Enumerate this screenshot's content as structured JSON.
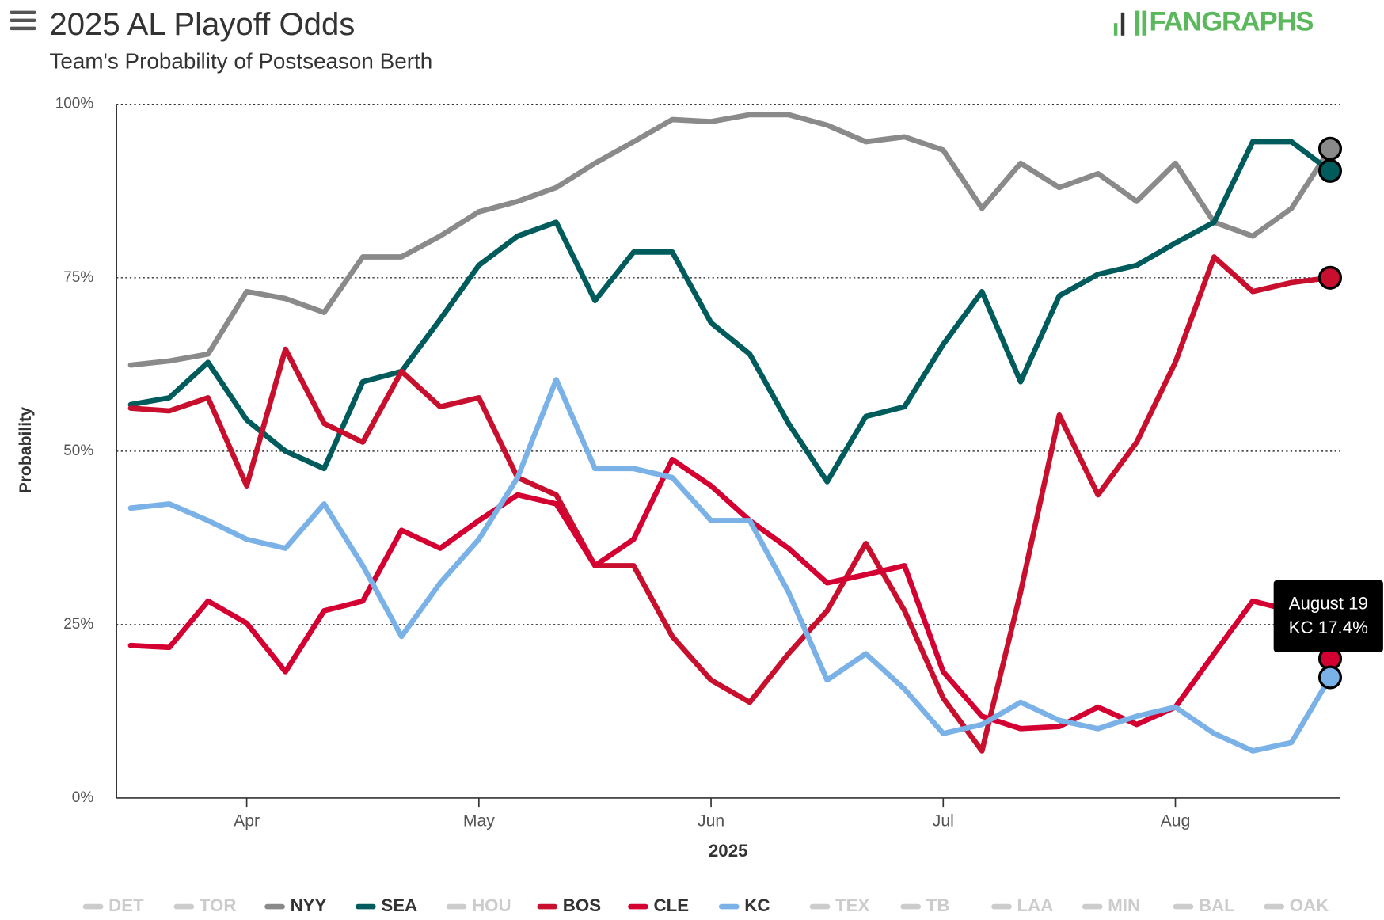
{
  "chart_data": {
    "type": "line",
    "title": "2025 AL Playoff Odds",
    "subtitle": "Team's Probability of Postseason Berth",
    "logo": "FANGRAPHS",
    "x_label": "2025",
    "y_label": "Probability",
    "categories": [
      null,
      null,
      null,
      "Apr",
      null,
      null,
      null,
      null,
      null,
      "May",
      null,
      null,
      null,
      null,
      null,
      "Jun",
      null,
      null,
      null,
      null,
      null,
      "Jul",
      null,
      null,
      null,
      null,
      null,
      "Aug",
      null,
      null,
      null,
      null
    ],
    "ylim": [
      0,
      100
    ],
    "yticks": [
      {
        "value": 0,
        "label": "0%"
      },
      {
        "value": 25,
        "label": "25%"
      },
      {
        "value": 50,
        "label": "50%"
      },
      {
        "value": 75,
        "label": "75%"
      },
      {
        "value": 100,
        "label": "100%"
      }
    ],
    "grid": true,
    "legend": "bottom",
    "tooltip": {
      "date": "August 19",
      "text": "KC 17.4%"
    },
    "series": [
      {
        "name": "DET",
        "color": "#cccccc",
        "visible": false
      },
      {
        "name": "TOR",
        "color": "#cccccc",
        "visible": false
      },
      {
        "name": "NYY",
        "color": "#8a8a8a",
        "visible": true,
        "values": [
          62.4,
          63,
          64,
          73,
          72,
          70,
          78,
          78,
          81,
          84.5,
          86,
          88,
          91.5,
          94.6,
          97.8,
          97.5,
          98.5,
          98.5,
          97,
          94.6,
          95.3,
          93.4,
          85,
          91.5,
          88,
          90,
          86,
          91.5,
          83,
          81,
          85,
          93.6
        ]
      },
      {
        "name": "SEA",
        "color": "#005c5c",
        "visible": true,
        "values": [
          56.7,
          57.7,
          62.8,
          54.5,
          50,
          47.5,
          60,
          61.5,
          69,
          76.8,
          81,
          83,
          71.7,
          78.7,
          78.7,
          68.5,
          64,
          54,
          45.6,
          55,
          56.4,
          65.4,
          73,
          60,
          72.4,
          75.5,
          76.8,
          80,
          83,
          94.6,
          94.6,
          90.4
        ]
      },
      {
        "name": "HOU",
        "color": "#cccccc",
        "visible": false
      },
      {
        "name": "BOS",
        "color": "#c8102e",
        "visible": true,
        "values": [
          56.2,
          55.8,
          57.7,
          45,
          64.7,
          54,
          51.3,
          61.5,
          56.4,
          57.7,
          46.2,
          43.7,
          33.5,
          33.5,
          23.3,
          17,
          13.8,
          20.8,
          27,
          36.7,
          27,
          14.4,
          6.8,
          29.7,
          55.2,
          43.7,
          51.3,
          62.8,
          78,
          73,
          74.3,
          75
        ]
      },
      {
        "name": "CLE",
        "color": "#d50032",
        "visible": true,
        "values": [
          22,
          21.7,
          28.4,
          25.2,
          18.2,
          27,
          28.4,
          38.6,
          36,
          40,
          43.7,
          42.4,
          33.5,
          37.3,
          48.8,
          45,
          40,
          36,
          31,
          32.2,
          33.5,
          18.2,
          11.8,
          10,
          10.3,
          13.1,
          10.6,
          13.1,
          20.8,
          28.4,
          27,
          20.1
        ]
      },
      {
        "name": "KC",
        "color": "#7ab2e8",
        "visible": true,
        "values": [
          41.8,
          42.4,
          40,
          37.3,
          36,
          42.4,
          33.5,
          23.3,
          31,
          37.3,
          46.2,
          60.3,
          47.5,
          47.5,
          46.2,
          40,
          40,
          29.7,
          17,
          20.8,
          15.7,
          9.3,
          10.6,
          13.8,
          11.2,
          10,
          11.8,
          13.1,
          9.3,
          6.8,
          8,
          17.4
        ]
      },
      {
        "name": "TEX",
        "color": "#cccccc",
        "visible": false
      },
      {
        "name": "TB",
        "color": "#cccccc",
        "visible": false
      },
      {
        "name": "LAA",
        "color": "#cccccc",
        "visible": false
      },
      {
        "name": "MIN",
        "color": "#cccccc",
        "visible": false
      },
      {
        "name": "BAL",
        "color": "#cccccc",
        "visible": false
      },
      {
        "name": "OAK",
        "color": "#cccccc",
        "visible": false
      }
    ]
  }
}
